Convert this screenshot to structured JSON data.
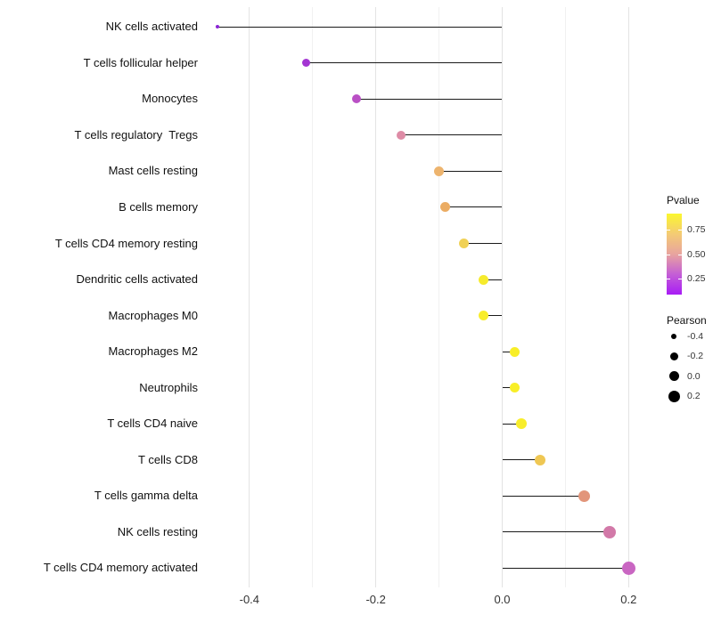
{
  "chart_data": {
    "type": "lollipop",
    "orientation": "horizontal",
    "title": "",
    "xlabel": "",
    "ylabel": "",
    "xlim": [
      -0.47,
      0.24
    ],
    "baseline": 0.0,
    "x_major_ticks": [
      -0.4,
      -0.2,
      0.0,
      0.2
    ],
    "x_minor_ticks": [
      -0.3,
      -0.1,
      0.1
    ],
    "x_tick_labels": [
      "-0.4",
      "-0.2",
      "0.0",
      "0.2"
    ],
    "grid": "vertical-only",
    "points": [
      {
        "category": "NK cells activated",
        "pearson": -0.45,
        "pvalue_est": 0.05,
        "color": "#8C25D6",
        "radius": 2
      },
      {
        "category": "T cells follicular helper",
        "pearson": -0.31,
        "pvalue_est": 0.12,
        "color": "#A335D2",
        "radius": 4.5
      },
      {
        "category": "Monocytes",
        "pearson": -0.23,
        "pvalue_est": 0.2,
        "color": "#BA50C5",
        "radius": 5
      },
      {
        "category": "T cells regulatory  Tregs",
        "pearson": -0.16,
        "pvalue_est": 0.4,
        "color": "#DE8CA6",
        "radius": 5
      },
      {
        "category": "Mast cells resting",
        "pearson": -0.1,
        "pvalue_est": 0.6,
        "color": "#EDB46E",
        "radius": 5.5
      },
      {
        "category": "B cells memory",
        "pearson": -0.09,
        "pvalue_est": 0.58,
        "color": "#EBAC63",
        "radius": 5.5
      },
      {
        "category": "T cells CD4 memory resting",
        "pearson": -0.06,
        "pvalue_est": 0.72,
        "color": "#F0D156",
        "radius": 5.5
      },
      {
        "category": "Dendritic cells activated",
        "pearson": -0.03,
        "pvalue_est": 0.85,
        "color": "#F6EB2C",
        "radius": 5.5
      },
      {
        "category": "Macrophages M0",
        "pearson": -0.03,
        "pvalue_est": 0.87,
        "color": "#F8ED2B",
        "radius": 5.5
      },
      {
        "category": "Macrophages M2",
        "pearson": 0.02,
        "pvalue_est": 0.88,
        "color": "#F8EE27",
        "radius": 5.5
      },
      {
        "category": "Neutrophils",
        "pearson": 0.02,
        "pvalue_est": 0.88,
        "color": "#F8EE27",
        "radius": 5.5
      },
      {
        "category": "T cells CD4 naive",
        "pearson": 0.03,
        "pvalue_est": 0.87,
        "color": "#F8ED2B",
        "radius": 6
      },
      {
        "category": "T cells CD8",
        "pearson": 0.06,
        "pvalue_est": 0.7,
        "color": "#EFC753",
        "radius": 6
      },
      {
        "category": "T cells gamma delta",
        "pearson": 0.13,
        "pvalue_est": 0.5,
        "color": "#E2957A",
        "radius": 6.5
      },
      {
        "category": "NK cells resting",
        "pearson": 0.17,
        "pvalue_est": 0.38,
        "color": "#D279A8",
        "radius": 7
      },
      {
        "category": "T cells CD4 memory activated",
        "pearson": 0.2,
        "pvalue_est": 0.25,
        "color": "#C966C2",
        "radius": 7.5
      }
    ],
    "legend": {
      "pvalue": {
        "title": "Pvalue",
        "tick_labels": [
          "0.75",
          "0.50",
          "0.25"
        ],
        "tick_values": [
          0.75,
          0.5,
          0.25
        ],
        "domain": [
          0.083,
          0.917
        ],
        "gradient_stops_top_to_bottom": [
          "#FBF72E",
          "#F4CB74",
          "#E8A49F",
          "#C45ED6",
          "#A81CF5"
        ]
      },
      "pearson": {
        "title": "Pearson",
        "entries": [
          {
            "label": "-0.4",
            "diameter": 6
          },
          {
            "label": "-0.2",
            "diameter": 9
          },
          {
            "label": "0.0",
            "diameter": 11
          },
          {
            "label": "0.2",
            "diameter": 13
          }
        ]
      }
    },
    "colors": {
      "stem": "#1A1A1A",
      "grid_major": "#E3E3E3",
      "grid_minor": "#F1F1F1",
      "axis_text": "#333333"
    }
  }
}
